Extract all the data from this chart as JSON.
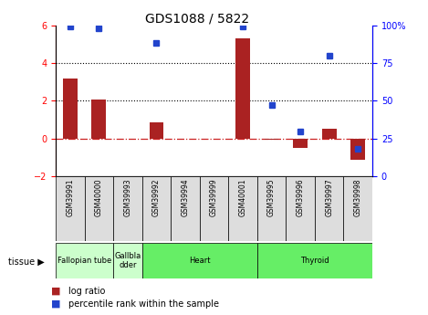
{
  "title": "GDS1088 / 5822",
  "samples": [
    "GSM39991",
    "GSM40000",
    "GSM39993",
    "GSM39992",
    "GSM39994",
    "GSM39999",
    "GSM40001",
    "GSM39995",
    "GSM39996",
    "GSM39997",
    "GSM39998"
  ],
  "log_ratio": [
    3.2,
    2.05,
    0.0,
    0.85,
    0.0,
    0.0,
    5.3,
    -0.05,
    -0.5,
    0.5,
    -1.1
  ],
  "percentile": [
    99,
    98,
    null,
    88,
    null,
    null,
    99,
    47,
    30,
    80,
    18
  ],
  "tissues": [
    {
      "name": "Fallopian tube",
      "start": 0,
      "end": 2,
      "color": "#ccffcc"
    },
    {
      "name": "Gallbla\ndder",
      "start": 2,
      "end": 3,
      "color": "#ccffcc"
    },
    {
      "name": "Heart",
      "start": 3,
      "end": 7,
      "color": "#66ee66"
    },
    {
      "name": "Thyroid",
      "start": 7,
      "end": 11,
      "color": "#66ee66"
    }
  ],
  "bar_color": "#aa2222",
  "dot_color": "#2244cc",
  "ylim_left": [
    -2,
    6
  ],
  "ylim_right": [
    0,
    100
  ],
  "yticks_left": [
    -2,
    0,
    2,
    4,
    6
  ],
  "yticks_right": [
    0,
    25,
    50,
    75,
    100
  ],
  "hline_dotted": [
    2,
    4
  ],
  "hline_zero_color": "#cc2222",
  "legend_items": [
    {
      "label": "log ratio",
      "color": "#aa2222"
    },
    {
      "label": "percentile rank within the sample",
      "color": "#2244cc"
    }
  ]
}
